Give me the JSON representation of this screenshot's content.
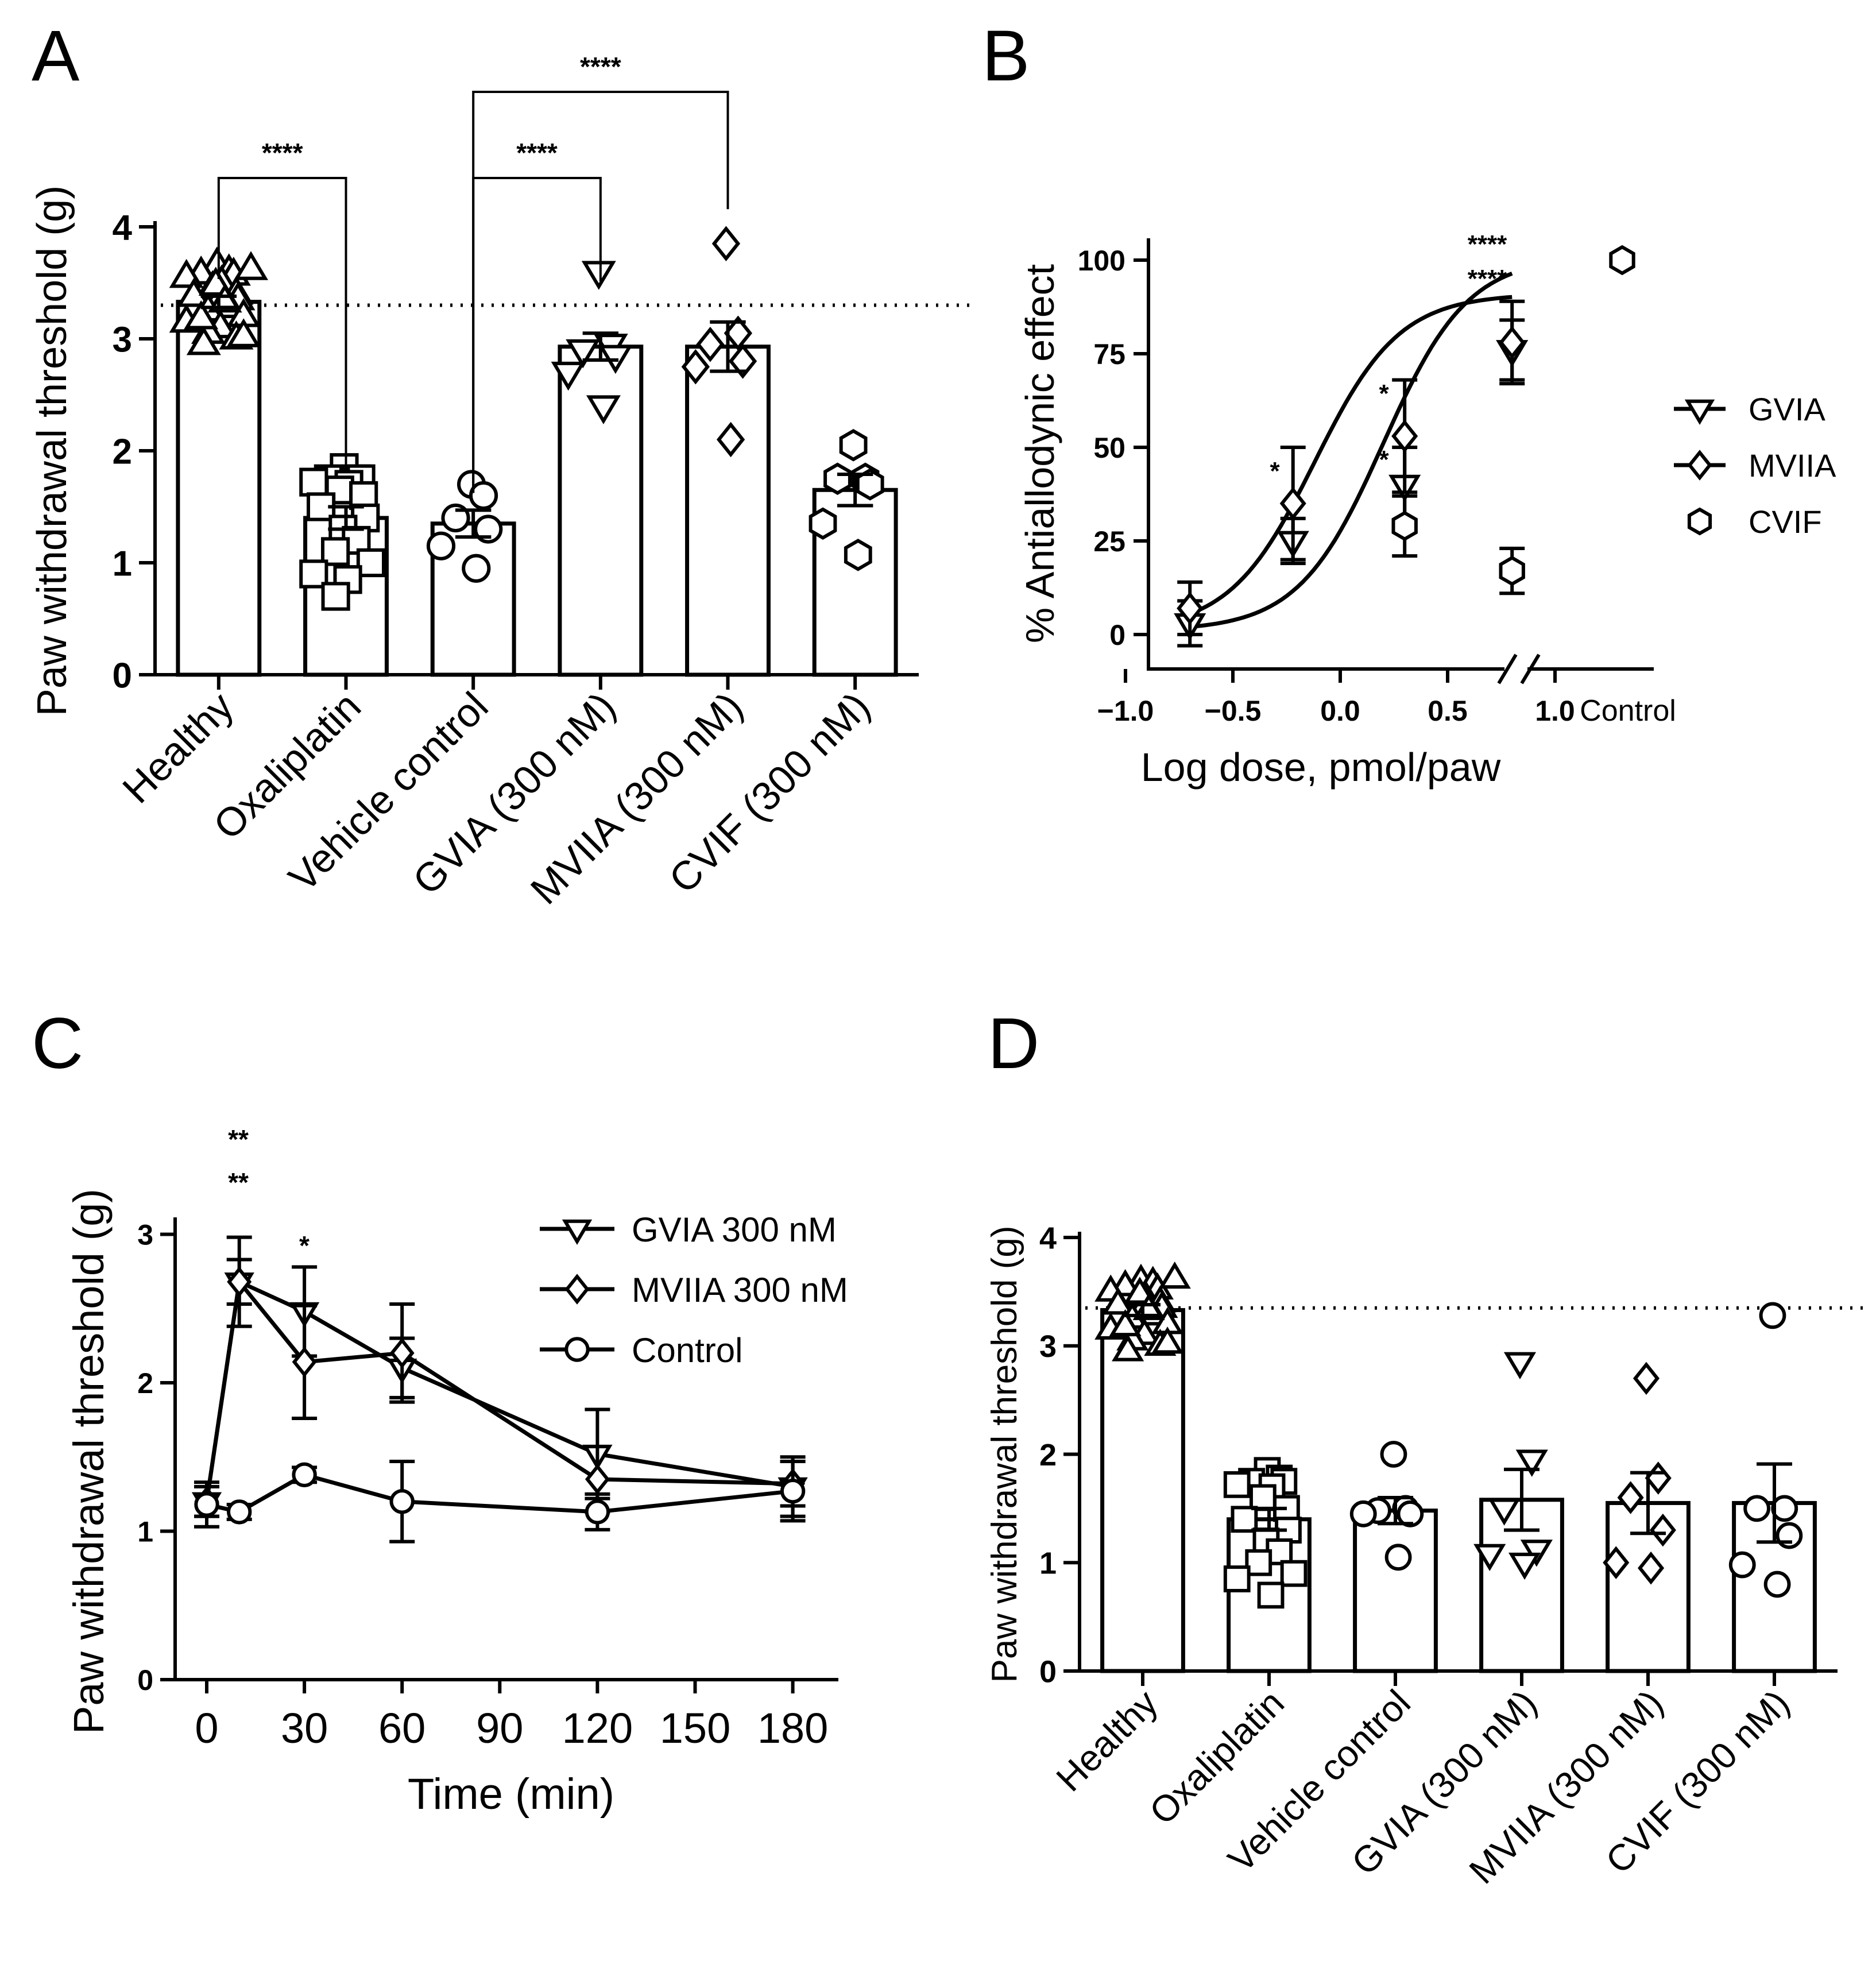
{
  "chart_data": [
    {
      "panel": "A",
      "type": "bar",
      "ylabel": "Paw withdrawal threshold (g)",
      "ylim": [
        0,
        4
      ],
      "yticks": [
        "0",
        "1",
        "2",
        "3",
        "4"
      ],
      "categories": [
        "Healthy",
        "Oxaliplatin",
        "Vehicle control",
        "GVIA (300 nM)",
        "MVIIA (300 nM)",
        "CVIF (300 nM)"
      ],
      "values": [
        3.33,
        1.4,
        1.35,
        2.93,
        2.93,
        1.65
      ],
      "sem": [
        0.05,
        0.1,
        0.12,
        0.12,
        0.22,
        0.14
      ],
      "markers": [
        "triangle-up",
        "square",
        "circle",
        "triangle-down",
        "diamond",
        "hexagon"
      ],
      "reference_line": 3.3,
      "points": [
        [
          3.66,
          3.6,
          3.58,
          3.57,
          3.55,
          3.5,
          3.45,
          3.4,
          3.38,
          3.35,
          3.3,
          3.28,
          3.25,
          3.2,
          3.15,
          3.1,
          3.05,
          3.0,
          2.95,
          3.62,
          3.48,
          3.33,
          3.18,
          3.02
        ],
        [
          1.85,
          1.75,
          1.75,
          1.75,
          1.72,
          1.7,
          1.65,
          1.6,
          1.5,
          1.4,
          1.3,
          1.2,
          1.1,
          1.0,
          0.9,
          0.85,
          0.7
        ],
        [
          1.7,
          1.6,
          1.4,
          1.3,
          1.15,
          0.95
        ],
        [
          3.6,
          2.95,
          2.9,
          2.85,
          2.7,
          2.4
        ],
        [
          3.85,
          3.05,
          2.95,
          2.8,
          2.75,
          2.1
        ],
        [
          2.05,
          1.75,
          1.75,
          1.7,
          1.35,
          1.07
        ]
      ],
      "significance": [
        {
          "from": "Healthy",
          "to": "Oxaliplatin",
          "label": "****"
        },
        {
          "from": "Vehicle control",
          "to": "GVIA (300 nM)",
          "label": "****"
        },
        {
          "from": "Vehicle control",
          "to": "MVIIA (300 nM)",
          "label": "****"
        }
      ]
    },
    {
      "panel": "B",
      "type": "scatter",
      "xlabel": "Log dose, pmol/paw",
      "ylabel": "% Antiallodynic effect",
      "xlim": [
        -1.0,
        1.0
      ],
      "ylim": [
        0,
        100
      ],
      "xticks": [
        "−1.0",
        "−0.5",
        "0.0",
        "0.5",
        "1.0"
      ],
      "yticks": [
        "0",
        "25",
        "50",
        "75",
        "100"
      ],
      "x_extra_label": "Control",
      "legend": [
        "GVIA",
        "MVIIA",
        "CVIF"
      ],
      "series": [
        {
          "name": "GVIA",
          "marker": "triangle-down",
          "x": [
            -0.7,
            -0.22,
            0.3,
            0.8
          ],
          "y": [
            3,
            25,
            40,
            76
          ],
          "sem": [
            6,
            6,
            10,
            8
          ]
        },
        {
          "name": "MVIIA",
          "marker": "diamond",
          "x": [
            -0.7,
            -0.22,
            0.3,
            0.8
          ],
          "y": [
            7,
            35,
            53,
            78
          ],
          "sem": [
            7,
            15,
            15,
            11
          ]
        },
        {
          "name": "CVIF",
          "marker": "hexagon",
          "x": [
            0.3,
            0.8
          ],
          "y": [
            29,
            17
          ],
          "sem": [
            8,
            6
          ]
        }
      ],
      "control": {
        "name": "CVIF",
        "marker": "hexagon",
        "y": 100
      },
      "annotations": [
        "*",
        "*",
        "*",
        "****",
        "****"
      ]
    },
    {
      "panel": "C",
      "type": "line",
      "xlabel": "Time (min)",
      "ylabel": "Paw withdrawal threshold (g)",
      "xlim": [
        -10,
        190
      ],
      "ylim": [
        0,
        3
      ],
      "xticks": [
        "0",
        "30",
        "60",
        "90",
        "120",
        "150",
        "180"
      ],
      "yticks": [
        "0",
        "1",
        "2",
        "3"
      ],
      "legend": [
        "GVIA 300 nM",
        "MVIIA 300 nM",
        "Control"
      ],
      "series": [
        {
          "name": "GVIA 300 nM",
          "marker": "triangle-down",
          "x": [
            0,
            10,
            30,
            60,
            120,
            180
          ],
          "y": [
            1.2,
            2.68,
            2.48,
            2.1,
            1.52,
            1.3
          ],
          "sem": [
            0.1,
            0.3,
            0.3,
            0.2,
            0.3,
            0.2
          ]
        },
        {
          "name": "MVIIA 300 nM",
          "marker": "diamond",
          "x": [
            0,
            10,
            30,
            60,
            120,
            180
          ],
          "y": [
            1.2,
            2.68,
            2.14,
            2.2,
            1.35,
            1.32
          ],
          "sem": [
            0.1,
            0.15,
            0.38,
            0.33,
            0.22,
            0.15
          ]
        },
        {
          "name": "Control",
          "marker": "circle",
          "x": [
            0,
            10,
            30,
            60,
            120,
            180
          ],
          "y": [
            1.18,
            1.13,
            1.38,
            1.2,
            1.13,
            1.27
          ],
          "sem": [
            0.15,
            0.05,
            0.05,
            0.27,
            0.12,
            0.2
          ]
        }
      ],
      "annotations": [
        "**",
        "**",
        "*"
      ]
    },
    {
      "panel": "D",
      "type": "bar",
      "ylabel": "Paw withdrawal threshold (g)",
      "ylim": [
        0,
        4
      ],
      "yticks": [
        "0",
        "1",
        "2",
        "3",
        "4"
      ],
      "categories": [
        "Healthy",
        "Oxaliplatin",
        "Vehicle control",
        "GVIA (300 nM)",
        "MVIIA (300 nM)",
        "CVIF (300 nM)"
      ],
      "values": [
        3.33,
        1.4,
        1.48,
        1.58,
        1.55,
        1.55
      ],
      "sem": [
        0.05,
        0.1,
        0.12,
        0.28,
        0.28,
        0.36
      ],
      "markers": [
        "triangle-up",
        "square",
        "circle",
        "triangle-down",
        "diamond",
        "circle"
      ],
      "reference_line": 3.35,
      "points": [
        [
          3.6,
          3.58,
          3.55,
          3.52,
          3.5,
          3.45,
          3.42,
          3.4,
          3.38,
          3.35,
          3.3,
          3.28,
          3.25,
          3.2,
          3.15,
          3.1,
          3.05,
          3.0,
          2.95,
          3.62,
          3.48,
          3.33,
          3.18,
          3.02
        ],
        [
          1.85,
          1.78,
          1.75,
          1.75,
          1.72,
          1.7,
          1.6,
          1.5,
          1.4,
          1.3,
          1.2,
          1.1,
          1.0,
          0.9,
          0.85,
          0.7
        ],
        [
          2.0,
          1.5,
          1.48,
          1.45,
          1.45,
          1.05
        ],
        [
          2.85,
          1.95,
          1.5,
          1.12,
          1.08,
          1.0
        ],
        [
          2.7,
          1.78,
          1.6,
          1.3,
          1.0,
          0.95
        ],
        [
          3.28,
          1.5,
          1.5,
          1.25,
          0.98,
          0.8
        ]
      ]
    }
  ],
  "panel_labels": [
    "A",
    "B",
    "C",
    "D"
  ]
}
